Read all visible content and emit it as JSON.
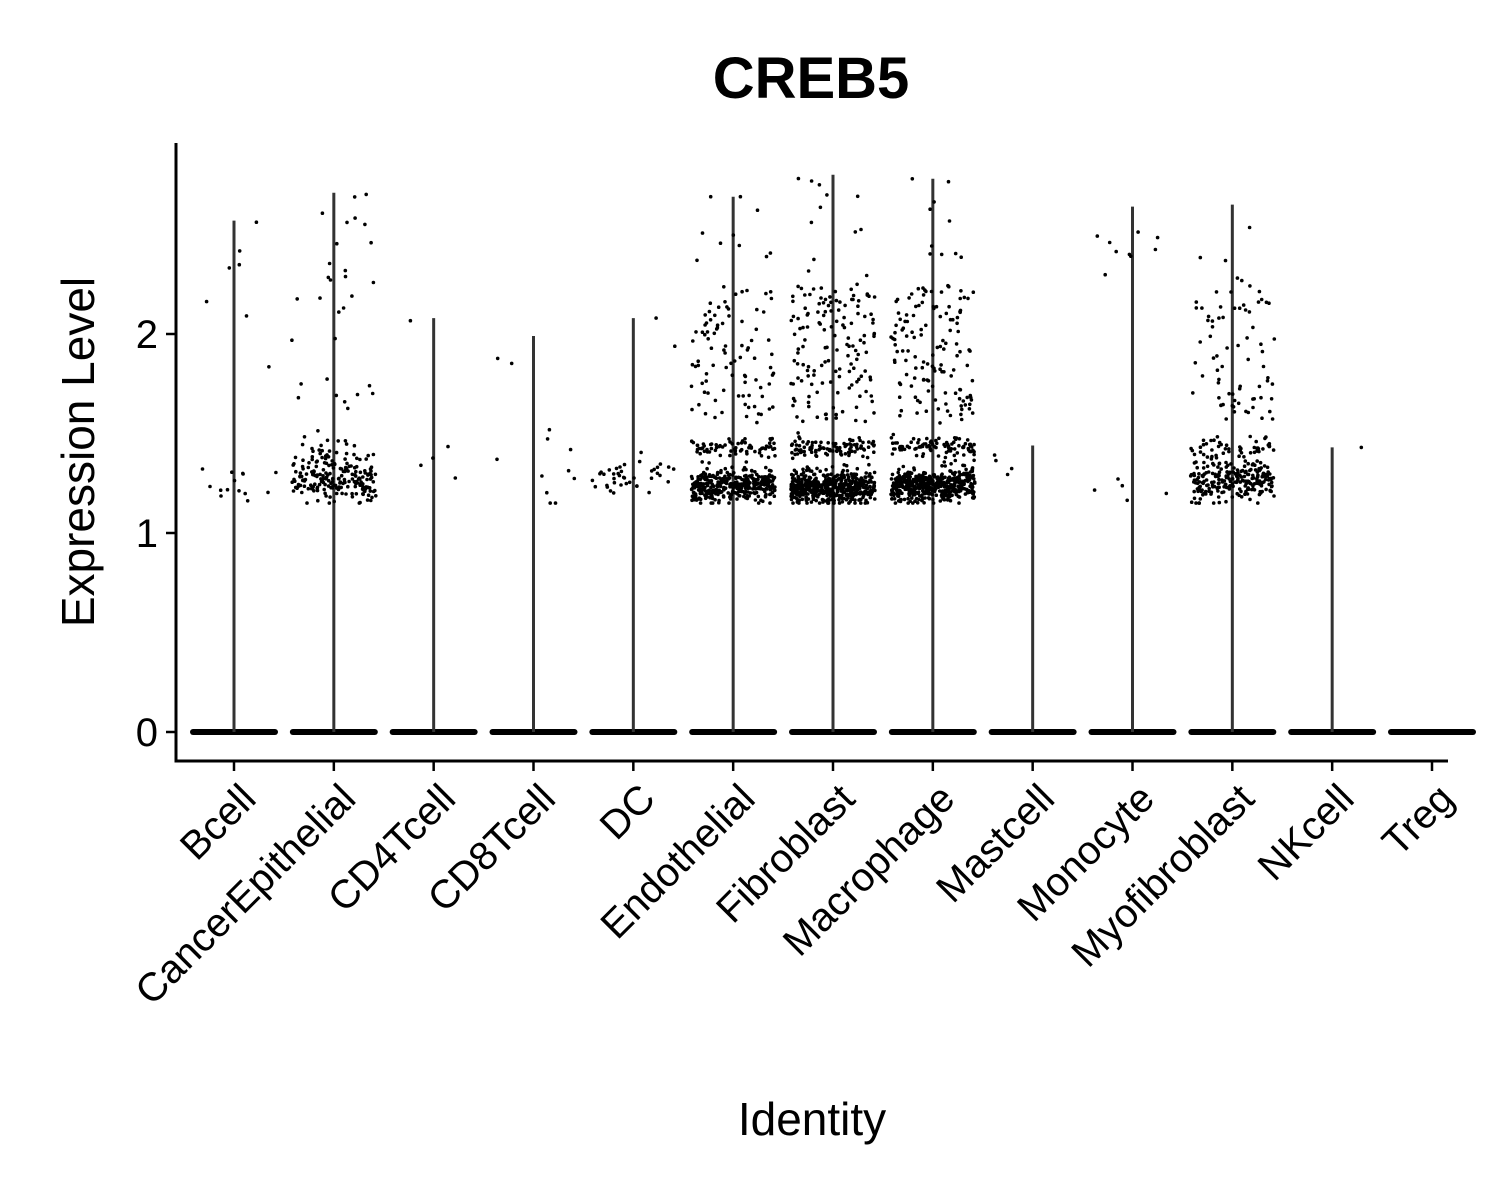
{
  "chart_data": {
    "type": "violin",
    "title": "CREB5",
    "xlabel": "Identity",
    "ylabel": "Expression Level",
    "ylim": [
      -0.14,
      2.95
    ],
    "y_ticks": [
      "0",
      "1",
      "2"
    ],
    "y_tick_values": [
      0,
      1,
      2
    ],
    "point_color": "#000000",
    "violin_color": "#333333",
    "categories": [
      "Bcell",
      "CancerEpithelial",
      "CD4Tcell",
      "CD8Tcell",
      "DC",
      "Endothelial",
      "Fibroblast",
      "Macrophage",
      "Mastcell",
      "Monocyte",
      "Myofibroblast",
      "NKcell",
      "Treg"
    ],
    "groups": [
      {
        "name": "Bcell",
        "max": 2.57,
        "nonzero_bands": [
          {
            "y": 1.25,
            "n": 14,
            "spread": 0.1
          },
          {
            "y": 1.9,
            "n": 7,
            "spread": 0.7
          }
        ]
      },
      {
        "name": "CancerEpithelial",
        "max": 2.71,
        "nonzero_bands": [
          {
            "y": 1.27,
            "n": 200,
            "spread": 0.12
          },
          {
            "y": 1.42,
            "n": 12,
            "spread": 0.04
          },
          {
            "y": 1.9,
            "n": 24,
            "spread": 0.5
          },
          {
            "y": 2.55,
            "n": 8,
            "spread": 0.18
          }
        ]
      },
      {
        "name": "CD4Tcell",
        "max": 2.08,
        "nonzero_bands": [
          {
            "y": 1.4,
            "n": 4,
            "spread": 0.15
          },
          {
            "y": 2.06,
            "n": 1,
            "spread": 0.02
          }
        ]
      },
      {
        "name": "CD8Tcell",
        "max": 1.99,
        "nonzero_bands": [
          {
            "y": 1.3,
            "n": 10,
            "spread": 0.3
          },
          {
            "y": 1.9,
            "n": 2,
            "spread": 0.1
          }
        ]
      },
      {
        "name": "DC",
        "max": 2.08,
        "nonzero_bands": [
          {
            "y": 1.27,
            "n": 40,
            "spread": 0.1
          },
          {
            "y": 1.8,
            "n": 2,
            "spread": 0.3
          }
        ]
      },
      {
        "name": "Endothelial",
        "max": 2.69,
        "nonzero_bands": [
          {
            "y": 1.24,
            "n": 360,
            "spread": 0.08
          },
          {
            "y": 1.43,
            "n": 70,
            "spread": 0.05
          },
          {
            "y": 1.9,
            "n": 90,
            "spread": 0.35
          },
          {
            "y": 2.5,
            "n": 10,
            "spread": 0.25
          }
        ]
      },
      {
        "name": "Fibroblast",
        "max": 2.8,
        "nonzero_bands": [
          {
            "y": 1.23,
            "n": 520,
            "spread": 0.08
          },
          {
            "y": 1.43,
            "n": 100,
            "spread": 0.05
          },
          {
            "y": 1.9,
            "n": 140,
            "spread": 0.35
          },
          {
            "y": 2.5,
            "n": 12,
            "spread": 0.3
          }
        ]
      },
      {
        "name": "Macrophage",
        "max": 2.78,
        "nonzero_bands": [
          {
            "y": 1.24,
            "n": 480,
            "spread": 0.08
          },
          {
            "y": 1.43,
            "n": 90,
            "spread": 0.05
          },
          {
            "y": 1.9,
            "n": 130,
            "spread": 0.35
          },
          {
            "y": 2.5,
            "n": 12,
            "spread": 0.3
          }
        ]
      },
      {
        "name": "Mastcell",
        "max": 1.44,
        "nonzero_bands": [
          {
            "y": 1.3,
            "n": 4,
            "spread": 0.15
          }
        ]
      },
      {
        "name": "Monocyte",
        "max": 2.64,
        "nonzero_bands": [
          {
            "y": 1.22,
            "n": 5,
            "spread": 0.08
          },
          {
            "y": 2.4,
            "n": 9,
            "spread": 0.25
          }
        ]
      },
      {
        "name": "Myofibroblast",
        "max": 2.65,
        "nonzero_bands": [
          {
            "y": 1.26,
            "n": 240,
            "spread": 0.1
          },
          {
            "y": 1.43,
            "n": 45,
            "spread": 0.05
          },
          {
            "y": 1.9,
            "n": 70,
            "spread": 0.35
          },
          {
            "y": 2.4,
            "n": 6,
            "spread": 0.25
          }
        ]
      },
      {
        "name": "NKcell",
        "max": 1.43,
        "nonzero_bands": [
          {
            "y": 1.43,
            "n": 1,
            "spread": 0.01
          }
        ]
      },
      {
        "name": "Treg",
        "max": 0,
        "nonzero_bands": []
      }
    ]
  }
}
